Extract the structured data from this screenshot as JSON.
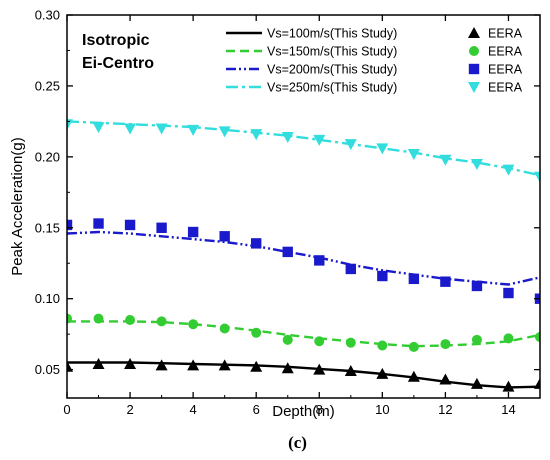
{
  "chart_data": {
    "type": "line",
    "title": "",
    "xlabel": "Depth(m)",
    "ylabel": "Peak Acceleration(g)",
    "xlim": [
      0,
      15
    ],
    "ylim": [
      0.03,
      0.3
    ],
    "xticks": [
      0,
      2,
      4,
      6,
      8,
      10,
      12,
      14
    ],
    "yticks": [
      0.05,
      0.1,
      0.15,
      0.2,
      0.25,
      0.3
    ],
    "ytick_labels": [
      "0.05",
      "0.10",
      "0.15",
      "0.20",
      "0.25",
      "0.30"
    ],
    "grid": false,
    "legend_position": "top-right",
    "annotations": [
      "Isotropic",
      "Ei-Centro"
    ],
    "caption": "(c)",
    "series": [
      {
        "name": "Vs=100m/s(This Study)",
        "kind": "line",
        "color": "#000000",
        "dash": "solid",
        "x": [
          0,
          1,
          2,
          3,
          4,
          5,
          6,
          7,
          8,
          9,
          10,
          11,
          12,
          13,
          14,
          15
        ],
        "y": [
          0.055,
          0.055,
          0.055,
          0.0545,
          0.054,
          0.0535,
          0.053,
          0.052,
          0.0505,
          0.049,
          0.047,
          0.0445,
          0.0415,
          0.039,
          0.0375,
          0.038
        ]
      },
      {
        "name": "Vs=150m/s(This Study)",
        "kind": "line",
        "color": "#33cc33",
        "dash": "dash",
        "x": [
          0,
          1,
          2,
          3,
          4,
          5,
          6,
          7,
          8,
          9,
          10,
          11,
          12,
          13,
          14,
          15
        ],
        "y": [
          0.084,
          0.084,
          0.084,
          0.0835,
          0.082,
          0.08,
          0.0775,
          0.0745,
          0.072,
          0.07,
          0.068,
          0.0665,
          0.067,
          0.068,
          0.07,
          0.0745
        ]
      },
      {
        "name": "Vs=200m/s(This Study)",
        "kind": "line",
        "color": "#1a1acc",
        "dash": "dashdotdot",
        "x": [
          0,
          1,
          2,
          3,
          4,
          5,
          6,
          7,
          8,
          9,
          10,
          11,
          12,
          13,
          14,
          15
        ],
        "y": [
          0.146,
          0.147,
          0.146,
          0.144,
          0.142,
          0.14,
          0.137,
          0.133,
          0.129,
          0.124,
          0.12,
          0.117,
          0.114,
          0.112,
          0.11,
          0.115
        ]
      },
      {
        "name": "Vs=250m/s(This Study)",
        "kind": "line",
        "color": "#33dddd",
        "dash": "dashdot",
        "x": [
          0,
          1,
          2,
          3,
          4,
          5,
          6,
          7,
          8,
          9,
          10,
          11,
          12,
          13,
          14,
          15
        ],
        "y": [
          0.225,
          0.224,
          0.223,
          0.222,
          0.221,
          0.219,
          0.217,
          0.215,
          0.212,
          0.209,
          0.206,
          0.203,
          0.199,
          0.196,
          0.192,
          0.187
        ]
      },
      {
        "name": "EERA",
        "kind": "marker",
        "marker": "triangle-up",
        "color": "#000000",
        "x": [
          0,
          1,
          2,
          3,
          4,
          5,
          6,
          7,
          8,
          9,
          10,
          11,
          12,
          13,
          14,
          15
        ],
        "y": [
          0.052,
          0.054,
          0.054,
          0.053,
          0.053,
          0.053,
          0.052,
          0.051,
          0.05,
          0.049,
          0.047,
          0.045,
          0.043,
          0.04,
          0.038,
          0.04
        ]
      },
      {
        "name": "EERA",
        "kind": "marker",
        "marker": "circle",
        "color": "#33cc33",
        "x": [
          0,
          1,
          2,
          3,
          4,
          5,
          6,
          7,
          8,
          9,
          10,
          11,
          12,
          13,
          14,
          15
        ],
        "y": [
          0.086,
          0.086,
          0.085,
          0.084,
          0.082,
          0.079,
          0.076,
          0.071,
          0.07,
          0.069,
          0.067,
          0.066,
          0.068,
          0.071,
          0.072,
          0.073
        ]
      },
      {
        "name": "EERA",
        "kind": "marker",
        "marker": "square",
        "color": "#1a1acc",
        "x": [
          0,
          1,
          2,
          3,
          4,
          5,
          6,
          7,
          8,
          9,
          10,
          11,
          12,
          13,
          14,
          15
        ],
        "y": [
          0.152,
          0.153,
          0.152,
          0.15,
          0.147,
          0.144,
          0.139,
          0.133,
          0.127,
          0.121,
          0.116,
          0.114,
          0.112,
          0.109,
          0.104,
          0.1
        ]
      },
      {
        "name": "EERA",
        "kind": "marker",
        "marker": "triangle-down",
        "color": "#33dddd",
        "x": [
          0,
          1,
          2,
          3,
          4,
          5,
          6,
          7,
          8,
          9,
          10,
          11,
          12,
          13,
          14,
          15
        ],
        "y": [
          0.223,
          0.221,
          0.22,
          0.22,
          0.219,
          0.218,
          0.216,
          0.214,
          0.212,
          0.209,
          0.206,
          0.202,
          0.198,
          0.195,
          0.191,
          0.186
        ]
      }
    ]
  }
}
